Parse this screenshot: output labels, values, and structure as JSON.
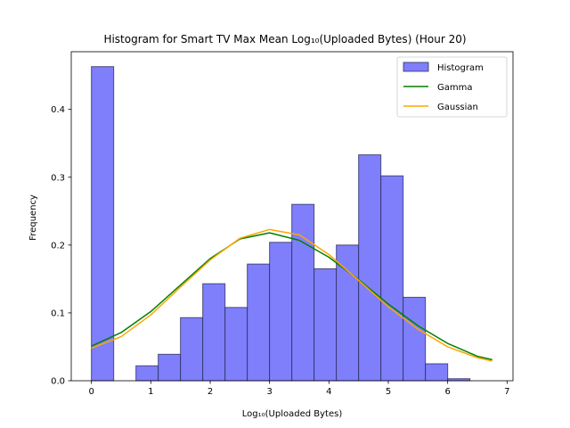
{
  "chart_data": {
    "type": "bar",
    "title": "Histogram for Smart TV Max Mean Log₁₀(Uploaded Bytes) (Hour 20)",
    "xlabel": "Log₁₀(Uploaded Bytes)",
    "ylabel": "Frequency",
    "xlim": [
      -0.34,
      7.1
    ],
    "ylim": [
      0,
      0.485
    ],
    "xticks": [
      0,
      1,
      2,
      3,
      4,
      5,
      6,
      7
    ],
    "yticks": [
      0.0,
      0.1,
      0.2,
      0.3,
      0.4
    ],
    "ytick_labels": [
      "0.0",
      "0.1",
      "0.2",
      "0.3",
      "0.4"
    ],
    "legend_position": "top-right",
    "bins": {
      "edges": [
        0.0,
        0.375,
        0.75,
        1.125,
        1.5,
        1.875,
        2.25,
        2.625,
        3.0,
        3.375,
        3.75,
        4.125,
        4.5,
        4.875,
        5.25,
        5.625,
        6.0,
        6.375
      ],
      "values": [
        0.463,
        0.0,
        0.022,
        0.039,
        0.093,
        0.143,
        0.108,
        0.172,
        0.204,
        0.26,
        0.165,
        0.2,
        0.333,
        0.302,
        0.123,
        0.025,
        0.003
      ]
    },
    "series": [
      {
        "name": "Histogram",
        "kind": "bar",
        "color": "#7f7ffc",
        "edgecolor": "#2e2e5e"
      },
      {
        "name": "Gamma",
        "kind": "line",
        "color": "#008000",
        "x": [
          0.0,
          0.5,
          1.0,
          1.5,
          2.0,
          2.5,
          3.0,
          3.5,
          4.0,
          4.5,
          5.0,
          5.5,
          6.0,
          6.5,
          6.75
        ],
        "y": [
          0.051,
          0.071,
          0.102,
          0.141,
          0.18,
          0.209,
          0.218,
          0.207,
          0.182,
          0.149,
          0.113,
          0.081,
          0.055,
          0.036,
          0.031
        ]
      },
      {
        "name": "Gaussian",
        "kind": "line",
        "color": "#ffa500",
        "x": [
          0.0,
          0.5,
          1.0,
          1.5,
          2.0,
          2.5,
          3.0,
          3.5,
          4.0,
          4.5,
          5.0,
          5.5,
          6.0,
          6.5,
          6.75
        ],
        "y": [
          0.048,
          0.065,
          0.097,
          0.138,
          0.178,
          0.21,
          0.223,
          0.215,
          0.186,
          0.148,
          0.109,
          0.076,
          0.05,
          0.034,
          0.029
        ]
      }
    ]
  }
}
